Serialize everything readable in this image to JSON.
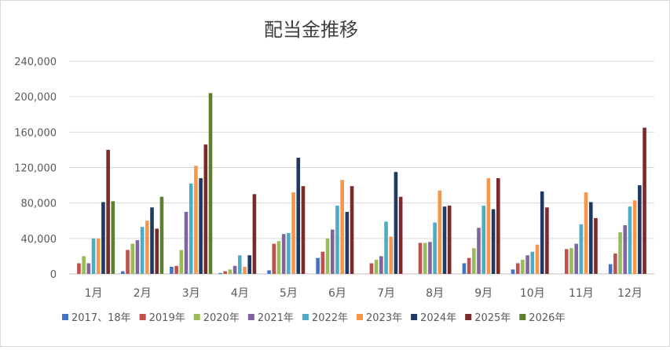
{
  "chart_data": {
    "type": "bar",
    "title": "配当金推移",
    "categories": [
      "1月",
      "2月",
      "3月",
      "4月",
      "5月",
      "6月",
      "7月",
      "8月",
      "9月",
      "10月",
      "11月",
      "12月"
    ],
    "ylim": [
      0,
      240000
    ],
    "yticks": [
      0,
      40000,
      80000,
      120000,
      160000,
      200000,
      240000
    ],
    "ytick_labels": [
      "0",
      "40,000",
      "80,000",
      "120,000",
      "160,000",
      "200,000",
      "240,000"
    ],
    "grid": true,
    "legend_position": "bottom",
    "series": [
      {
        "name": "2017、18年",
        "color": "#4472C4",
        "values": [
          0,
          3000,
          8000,
          1000,
          4000,
          18000,
          0,
          0,
          12000,
          5000,
          0,
          11000
        ]
      },
      {
        "name": "2019年",
        "color": "#C0504D",
        "values": [
          12000,
          27000,
          9000,
          3000,
          34000,
          25000,
          12000,
          35000,
          18000,
          12000,
          28000,
          23000
        ]
      },
      {
        "name": "2020年",
        "color": "#9BBB59",
        "values": [
          20000,
          34000,
          27000,
          5000,
          37000,
          40000,
          16000,
          35000,
          29000,
          16000,
          29000,
          47000
        ]
      },
      {
        "name": "2021年",
        "color": "#8064A2",
        "values": [
          12000,
          38000,
          70000,
          9000,
          45000,
          50000,
          20000,
          36000,
          52000,
          21000,
          34000,
          55000
        ]
      },
      {
        "name": "2022年",
        "color": "#4BACC6",
        "values": [
          40000,
          53000,
          102000,
          21000,
          46000,
          77000,
          59000,
          58000,
          77000,
          25000,
          56000,
          76000
        ]
      },
      {
        "name": "2023年",
        "color": "#F79646",
        "values": [
          40000,
          60000,
          122000,
          8000,
          92000,
          106000,
          42000,
          94000,
          108000,
          33000,
          92000,
          83000
        ]
      },
      {
        "name": "2024年",
        "color": "#1F3864",
        "values": [
          81000,
          75000,
          108000,
          21000,
          131000,
          70000,
          115000,
          76000,
          73000,
          93000,
          81000,
          100000
        ]
      },
      {
        "name": "2025年",
        "color": "#7B2A2A",
        "values": [
          140000,
          51000,
          146000,
          90000,
          99000,
          99000,
          87000,
          77000,
          108000,
          75000,
          63000,
          165000
        ]
      },
      {
        "name": "2026年",
        "color": "#5E7F2E",
        "values": [
          82000,
          87000,
          204000,
          null,
          null,
          null,
          null,
          null,
          null,
          null,
          null,
          null
        ]
      }
    ]
  }
}
